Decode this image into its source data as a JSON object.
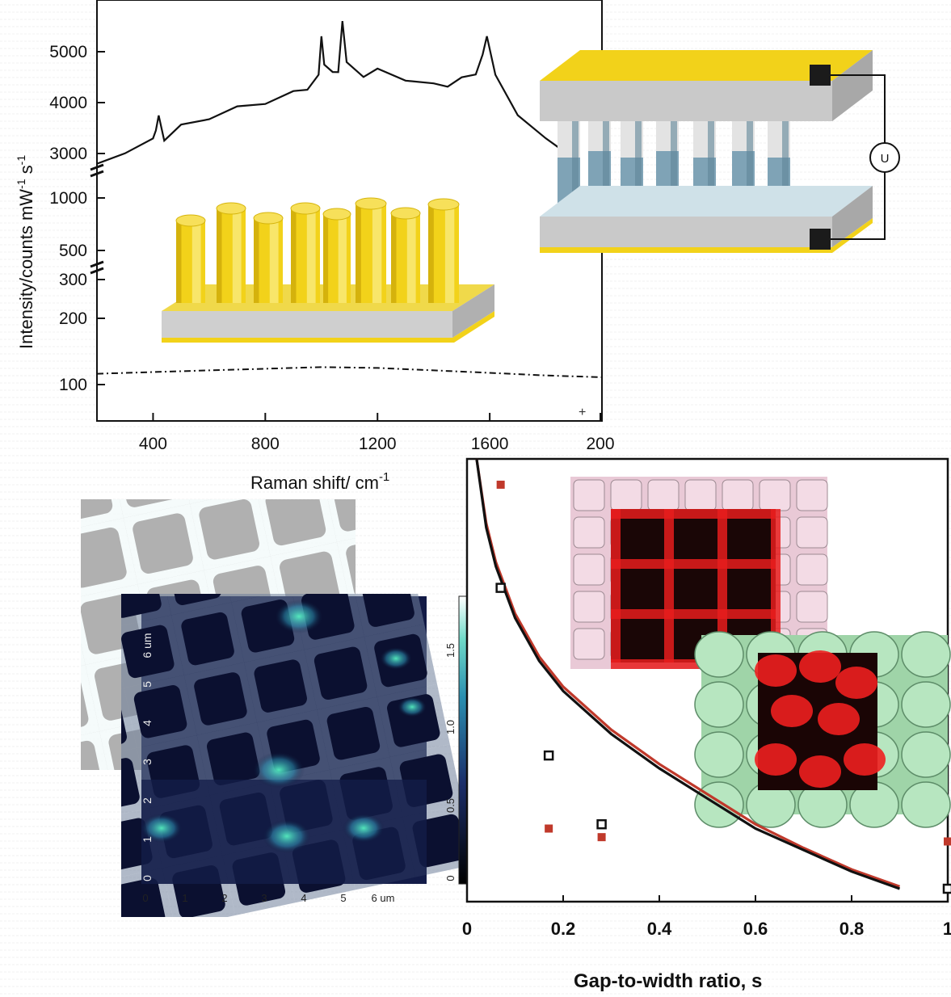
{
  "raman_chart": {
    "type": "line",
    "xlabel": "Raman shift/ cm",
    "xlabel_sup": "-1",
    "ylabel": "Intensity/counts mW",
    "ylabel_sup1": "-1",
    "ylabel_mid": " s",
    "ylabel_sup2": "-1",
    "x_ticks": [
      "400",
      "800",
      "1200",
      "1600",
      "200"
    ],
    "y_ticks": [
      "5000",
      "4000",
      "3000",
      "1000",
      "500",
      "300",
      "200",
      "100"
    ],
    "corner_mark": "+"
  },
  "chart_data": [
    {
      "type": "line",
      "title": "",
      "xlabel": "Raman shift/ cm-1",
      "ylabel": "Intensity/counts mW-1 s-1",
      "xlim": [
        200,
        2000
      ],
      "y_scale": "broken log",
      "series": [
        {
          "style": "solid",
          "x": [
            200,
            300,
            400,
            410,
            420,
            440,
            500,
            600,
            700,
            800,
            900,
            950,
            990,
            1000,
            1010,
            1040,
            1060,
            1075,
            1090,
            1150,
            1200,
            1300,
            1400,
            1450,
            1500,
            1550,
            1575,
            1590,
            1620,
            1700,
            1800,
            1850
          ],
          "y": [
            2800,
            3050,
            3250,
            3500,
            3700,
            3300,
            3520,
            3720,
            3880,
            4020,
            4180,
            4300,
            4500,
            5350,
            4700,
            4650,
            4550,
            5650,
            4750,
            4550,
            4620,
            4480,
            4330,
            4360,
            4450,
            4600,
            4900,
            5350,
            4500,
            3800,
            3250,
            3100
          ]
        },
        {
          "style": "dash-dot",
          "x": [
            200,
            400,
            600,
            800,
            1000,
            1200,
            1400,
            1600,
            1800,
            2000
          ],
          "y": [
            112,
            114,
            116,
            118,
            120,
            119,
            116,
            113,
            110,
            108
          ]
        }
      ]
    },
    {
      "type": "line",
      "title": "",
      "xlabel": "Gap-to-width ratio, s",
      "ylabel": "",
      "xlim": [
        0,
        1
      ],
      "x_ticks": [
        "0",
        "0.2",
        "0.4",
        "0.6",
        "0.8",
        "1"
      ],
      "series": [
        {
          "color": "#111111",
          "style": "line",
          "x": [
            0.02,
            0.04,
            0.06,
            0.1,
            0.15,
            0.2,
            0.3,
            0.4,
            0.5,
            0.6,
            0.7,
            0.8,
            0.9
          ],
          "y": [
            1.0,
            0.84,
            0.75,
            0.63,
            0.53,
            0.46,
            0.36,
            0.28,
            0.21,
            0.14,
            0.09,
            0.04,
            0.0
          ]
        },
        {
          "color": "#c0392b",
          "style": "line",
          "x": [
            0.02,
            0.04,
            0.06,
            0.1,
            0.15,
            0.2,
            0.3,
            0.4,
            0.5,
            0.6,
            0.7,
            0.8,
            0.9
          ],
          "y": [
            1.0,
            0.85,
            0.76,
            0.64,
            0.54,
            0.47,
            0.37,
            0.29,
            0.22,
            0.15,
            0.095,
            0.045,
            0.005
          ]
        },
        {
          "color": "#111111",
          "style": "open-square",
          "x": [
            0.07,
            0.17,
            0.28,
            1.0
          ],
          "y": [
            0.7,
            0.31,
            0.15,
            0.0
          ]
        },
        {
          "color": "#c0392b",
          "style": "filled-square",
          "x": [
            0.07,
            0.17,
            0.28,
            1.0
          ],
          "y": [
            0.94,
            0.14,
            0.12,
            0.11
          ]
        }
      ]
    },
    {
      "type": "heatmap",
      "title": "",
      "xlabel": "",
      "ylabel": "",
      "x_ticks": [
        "0",
        "1",
        "2",
        "3",
        "4",
        "5",
        "6 um"
      ],
      "y_ticks": [
        "0",
        "1",
        "2",
        "3",
        "4",
        "5",
        "6 um"
      ],
      "colorbar_ticks": [
        "0",
        "0.5",
        "1.0",
        "1.5"
      ]
    }
  ],
  "colors": {
    "gold": "#f2d21a",
    "gold_dark": "#c9a90c",
    "slab_gray": "#c7c7c7",
    "pillar_blue": "#7fa3b6",
    "electrode": "#1b1b1b",
    "red_curve": "#c0392b",
    "heat_dark": "#0b1030",
    "heat_glow": "#3fd7b0"
  },
  "icons": {
    "voltmeter": "circle-u-icon"
  },
  "circuit": {
    "meter_label": "U"
  }
}
